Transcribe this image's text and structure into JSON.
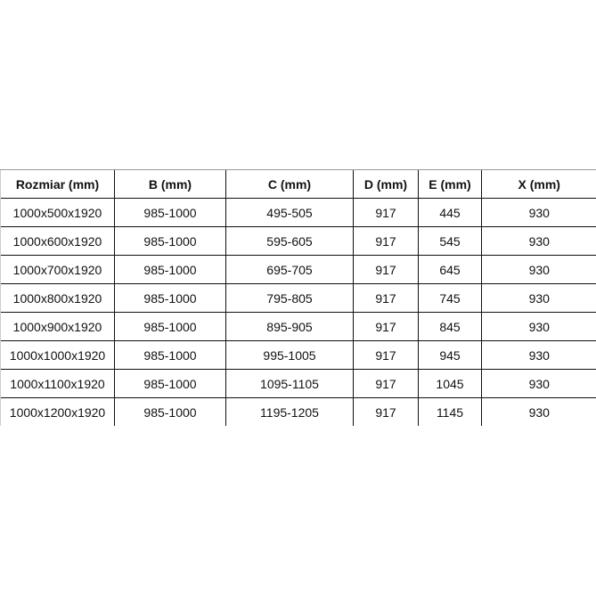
{
  "table": {
    "headers": [
      "Rozmiar (mm)",
      "B (mm)",
      "C (mm)",
      "D (mm)",
      "E (mm)",
      "X (mm)"
    ],
    "rows": [
      [
        "1000x500x1920",
        "985-1000",
        "495-505",
        "917",
        "445",
        "930"
      ],
      [
        "1000x600x1920",
        "985-1000",
        "595-605",
        "917",
        "545",
        "930"
      ],
      [
        "1000x700x1920",
        "985-1000",
        "695-705",
        "917",
        "645",
        "930"
      ],
      [
        "1000x800x1920",
        "985-1000",
        "795-805",
        "917",
        "745",
        "930"
      ],
      [
        "1000x900x1920",
        "985-1000",
        "895-905",
        "917",
        "845",
        "930"
      ],
      [
        "1000x1000x1920",
        "985-1000",
        "995-1005",
        "917",
        "945",
        "930"
      ],
      [
        "1000x1100x1920",
        "985-1000",
        "1095-1105",
        "917",
        "1045",
        "930"
      ],
      [
        "1000x1200x1920",
        "985-1000",
        "1195-1205",
        "917",
        "1145",
        "930"
      ]
    ]
  }
}
